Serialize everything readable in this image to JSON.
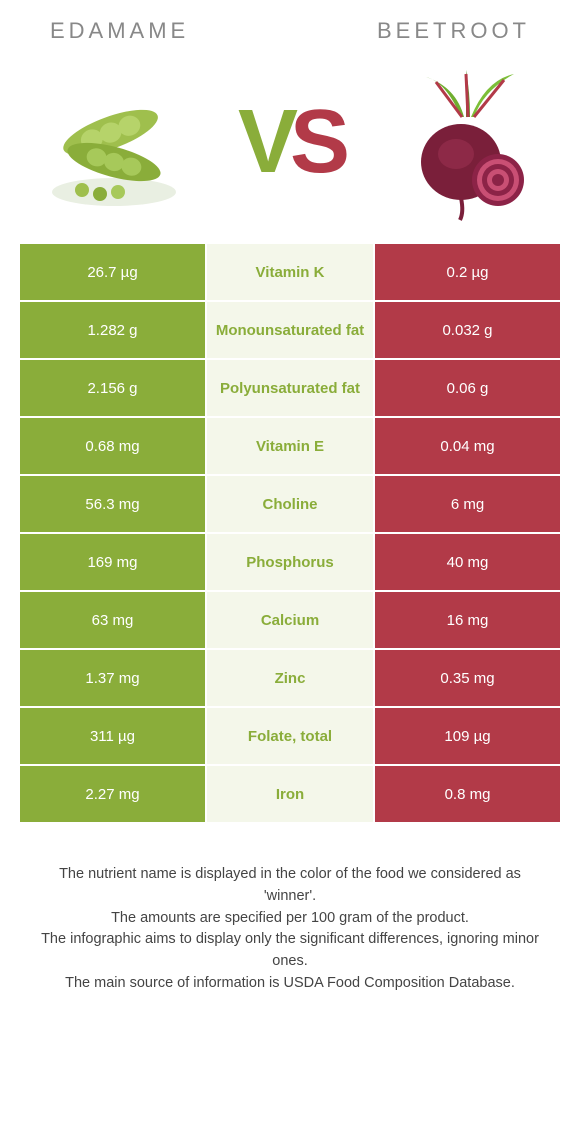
{
  "colors": {
    "left": "#8aad3a",
    "right": "#b23a48",
    "mid_bg": "#f4f7ea"
  },
  "header": {
    "left": "Edamame",
    "right": "Beetroot"
  },
  "vs": {
    "v": "V",
    "s": "S"
  },
  "rows": [
    {
      "left": "26.7 µg",
      "label": "Vitamin K",
      "right": "0.2 µg",
      "winner": "left"
    },
    {
      "left": "1.282 g",
      "label": "Monounsaturated fat",
      "right": "0.032 g",
      "winner": "left"
    },
    {
      "left": "2.156 g",
      "label": "Polyunsaturated fat",
      "right": "0.06 g",
      "winner": "left"
    },
    {
      "left": "0.68 mg",
      "label": "Vitamin E",
      "right": "0.04 mg",
      "winner": "left"
    },
    {
      "left": "56.3 mg",
      "label": "Choline",
      "right": "6 mg",
      "winner": "left"
    },
    {
      "left": "169 mg",
      "label": "Phosphorus",
      "right": "40 mg",
      "winner": "left"
    },
    {
      "left": "63 mg",
      "label": "Calcium",
      "right": "16 mg",
      "winner": "left"
    },
    {
      "left": "1.37 mg",
      "label": "Zinc",
      "right": "0.35 mg",
      "winner": "left"
    },
    {
      "left": "311 µg",
      "label": "Folate, total",
      "right": "109 µg",
      "winner": "left"
    },
    {
      "left": "2.27 mg",
      "label": "Iron",
      "right": "0.8 mg",
      "winner": "left"
    }
  ],
  "footer": [
    "The nutrient name is displayed in the color of the food we considered as 'winner'.",
    "The amounts are specified per 100 gram of the product.",
    "The infographic aims to display only the significant differences, ignoring minor ones.",
    "The main source of information is USDA Food Composition Database."
  ]
}
